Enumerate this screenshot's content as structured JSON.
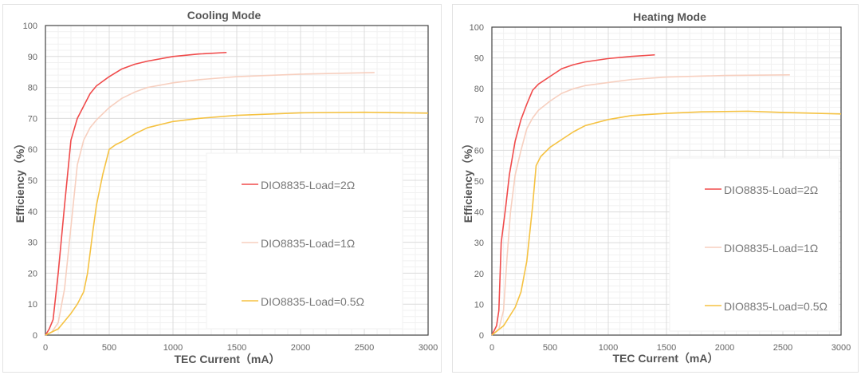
{
  "chart_data": [
    {
      "type": "line",
      "title": "Cooling Mode",
      "xlabel": "TEC Current（mA）",
      "ylabel": "Efficiency（%）",
      "xlim": [
        0,
        3000
      ],
      "ylim": [
        0,
        100
      ],
      "xticks": [
        "0",
        "500",
        "1000",
        "1500",
        "2000",
        "2500",
        "3000"
      ],
      "yticks": [
        "0",
        "10",
        "20",
        "30",
        "40",
        "50",
        "60",
        "70",
        "80",
        "90",
        "100"
      ],
      "grid": true,
      "legend_position": "bottom-right",
      "series": [
        {
          "name": "DIO8835-Load=2Ω",
          "color": "#f04b4b",
          "x": [
            0,
            30,
            60,
            100,
            150,
            200,
            250,
            300,
            350,
            400,
            500,
            600,
            700,
            800,
            1000,
            1200,
            1420
          ],
          "y": [
            0,
            2,
            5,
            20,
            42,
            63,
            70,
            74,
            78,
            80.5,
            83.5,
            86,
            87.5,
            88.5,
            90,
            90.8,
            91.3
          ]
        },
        {
          "name": "DIO8835-Load=1Ω",
          "color": "#f7cfbf",
          "x": [
            0,
            50,
            100,
            150,
            200,
            250,
            300,
            350,
            400,
            500,
            600,
            700,
            800,
            1000,
            1200,
            1500,
            2000,
            2580
          ],
          "y": [
            0,
            1,
            4,
            15,
            35,
            55,
            63,
            67,
            69.5,
            73.5,
            76.5,
            78.5,
            80,
            81.5,
            82.5,
            83.5,
            84.3,
            84.8
          ]
        },
        {
          "name": "DIO8835-Load=0.5Ω",
          "color": "#f5c242",
          "x": [
            0,
            100,
            200,
            250,
            300,
            330,
            370,
            400,
            450,
            500,
            550,
            600,
            700,
            800,
            1000,
            1200,
            1500,
            2000,
            2500,
            3000
          ],
          "y": [
            0,
            2,
            7,
            10,
            14,
            20,
            33,
            42,
            52,
            60,
            61.5,
            62.5,
            65,
            67,
            69,
            70,
            71,
            71.8,
            72,
            71.7
          ]
        }
      ]
    },
    {
      "type": "line",
      "title": "Heating Mode",
      "xlabel": "TEC Current（mA）",
      "ylabel": "Efficiency（%）",
      "xlim": [
        0,
        3000
      ],
      "ylim": [
        0,
        100
      ],
      "xticks": [
        "0",
        "500",
        "1000",
        "1500",
        "2000",
        "2500",
        "3000"
      ],
      "yticks": [
        "0",
        "10",
        "20",
        "30",
        "40",
        "50",
        "60",
        "70",
        "80",
        "90",
        "100"
      ],
      "grid": true,
      "legend_position": "bottom-right",
      "series": [
        {
          "name": "DIO8835-Load=2Ω",
          "color": "#f04b4b",
          "x": [
            0,
            40,
            60,
            80,
            120,
            150,
            200,
            250,
            300,
            350,
            400,
            500,
            600,
            700,
            800,
            1000,
            1200,
            1400
          ],
          "y": [
            0,
            3,
            8,
            30,
            42,
            52,
            63,
            70,
            75,
            79.5,
            81.5,
            84,
            86.5,
            87.8,
            88.7,
            89.8,
            90.5,
            91
          ]
        },
        {
          "name": "DIO8835-Load=1Ω",
          "color": "#f7cfbf",
          "x": [
            0,
            60,
            100,
            130,
            160,
            200,
            250,
            300,
            350,
            400,
            500,
            600,
            700,
            800,
            1000,
            1200,
            1500,
            2000,
            2560
          ],
          "y": [
            0,
            2,
            8,
            25,
            40,
            52,
            60,
            67,
            70.5,
            73,
            76,
            78.5,
            80,
            81,
            82,
            83,
            83.8,
            84.3,
            84.5
          ]
        },
        {
          "name": "DIO8835-Load=0.5Ω",
          "color": "#f5c242",
          "x": [
            0,
            100,
            200,
            250,
            300,
            350,
            380,
            420,
            500,
            600,
            700,
            800,
            1000,
            1200,
            1500,
            1800,
            2200,
            2500,
            3000
          ],
          "y": [
            0,
            3,
            9,
            14,
            24,
            42,
            55,
            58,
            61,
            63.5,
            66,
            68,
            70,
            71.3,
            72,
            72.5,
            72.7,
            72.3,
            71.8
          ]
        }
      ]
    }
  ]
}
